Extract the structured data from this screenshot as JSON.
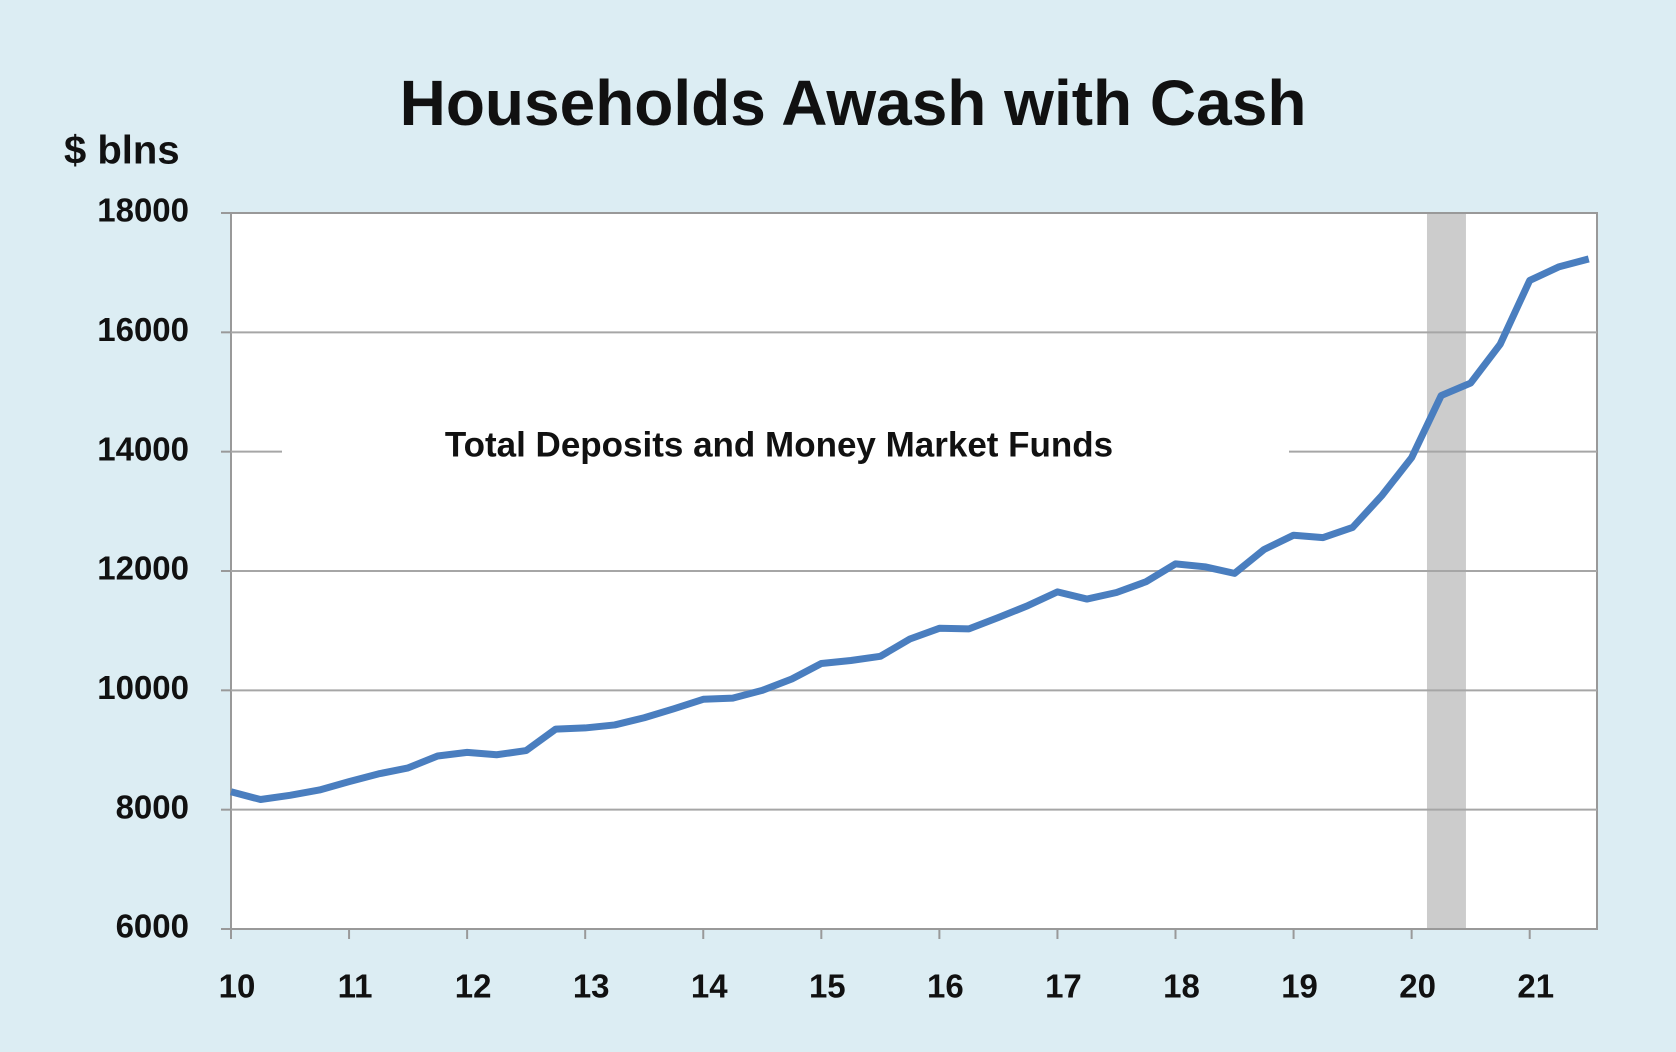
{
  "chart_data": {
    "type": "line",
    "title": "Households Awash with Cash",
    "y_label": "$ blns",
    "annotation": "Total Deposits and Money Market Funds",
    "x": [
      10,
      10.25,
      10.5,
      10.75,
      11,
      11.25,
      11.5,
      11.75,
      12,
      12.25,
      12.5,
      12.75,
      13,
      13.25,
      13.5,
      13.75,
      14,
      14.25,
      14.5,
      14.75,
      15,
      15.25,
      15.5,
      15.75,
      16,
      16.25,
      16.5,
      16.75,
      17,
      17.25,
      17.5,
      17.75,
      18,
      18.25,
      18.5,
      18.75,
      19,
      19.25,
      19.5,
      19.75,
      20,
      20.25,
      20.5,
      20.75,
      21,
      21.25,
      21.5
    ],
    "values": [
      8300,
      8170,
      8240,
      8330,
      8470,
      8600,
      8700,
      8900,
      8960,
      8920,
      8990,
      9350,
      9370,
      9420,
      9540,
      9690,
      9850,
      9870,
      10000,
      10190,
      10450,
      10500,
      10570,
      10860,
      11040,
      11030,
      11220,
      11420,
      11650,
      11530,
      11640,
      11820,
      12120,
      12070,
      11960,
      12360,
      12600,
      12560,
      12730,
      13270,
      13900,
      14940,
      15150,
      15800,
      16870,
      17100,
      17230
    ],
    "color": "#4a7ebf",
    "recession": {
      "x0": 20.13,
      "x1": 20.46,
      "color": "#cccccc"
    },
    "xlim": [
      10,
      21.57
    ],
    "xticks": [
      10,
      11,
      12,
      13,
      14,
      15,
      16,
      17,
      18,
      19,
      20,
      21
    ],
    "ylim": [
      6000,
      18000
    ],
    "yticks": [
      6000,
      8000,
      10000,
      12000,
      14000,
      16000,
      18000
    ],
    "grid": true
  }
}
